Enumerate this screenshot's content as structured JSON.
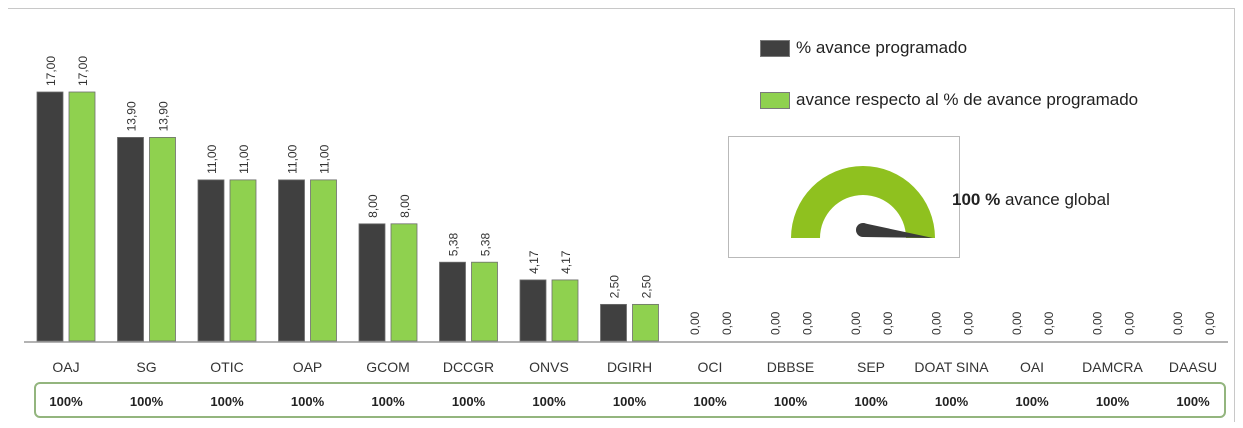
{
  "chart_data": {
    "type": "bar",
    "categories": [
      "OAJ",
      "SG",
      "OTIC",
      "OAP",
      "GCOM",
      "DCCGR",
      "ONVS",
      "DGIRH",
      "OCI",
      "DBBSE",
      "SEP",
      "DOAT SINA",
      "OAI",
      "DAMCRA",
      "DAASU"
    ],
    "series": [
      {
        "name": "% avance programado",
        "color": "#404040",
        "values": [
          17.0,
          13.9,
          11.0,
          11.0,
          8.0,
          5.38,
          4.17,
          2.5,
          0.0,
          0.0,
          0.0,
          0.0,
          0.0,
          0.0,
          0.0
        ]
      },
      {
        "name": "avance respecto al % de avance programado",
        "color": "#8fd14f",
        "values": [
          17.0,
          13.9,
          11.0,
          11.0,
          8.0,
          5.38,
          4.17,
          2.5,
          0.0,
          0.0,
          0.0,
          0.0,
          0.0,
          0.0,
          0.0
        ]
      }
    ],
    "data_labels": [
      [
        "17,00",
        "13,90",
        "11,00",
        "11,00",
        "8,00",
        "5,38",
        "4,17",
        "2,50",
        "0,00",
        "0,00",
        "0,00",
        "0,00",
        "0,00",
        "0,00",
        "0,00"
      ],
      [
        "17,00",
        "13,90",
        "11,00",
        "11,00",
        "8,00",
        "5,38",
        "4,17",
        "2,50",
        "0,00",
        "0,00",
        "0,00",
        "0,00",
        "0,00",
        "0,00",
        "0,00"
      ]
    ],
    "category_percentages": [
      "100%",
      "100%",
      "100%",
      "100%",
      "100%",
      "100%",
      "100%",
      "100%",
      "100%",
      "100%",
      "100%",
      "100%",
      "100%",
      "100%",
      "100%"
    ],
    "ylim": [
      0,
      17
    ],
    "grid": false,
    "legend_position": "top-right",
    "gauge": {
      "value": 100,
      "max": 100,
      "value_label": "100 %",
      "label": "avance global",
      "color": "#8fc11f",
      "needle_color": "#3a3a3a"
    }
  }
}
